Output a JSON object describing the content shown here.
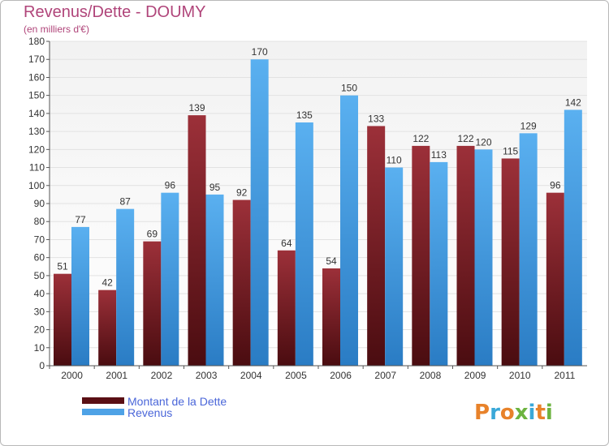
{
  "chart_data": {
    "type": "bar",
    "title": "Revenus/Dette - DOUMY",
    "subtitle": "(en milliers d'€)",
    "categories": [
      "2000",
      "2001",
      "2002",
      "2003",
      "2004",
      "2005",
      "2006",
      "2007",
      "2008",
      "2009",
      "2010",
      "2011"
    ],
    "series": [
      {
        "name": "Montant de la Dette",
        "values": [
          51,
          42,
          69,
          139,
          92,
          64,
          54,
          133,
          122,
          122,
          115,
          96
        ],
        "color": "#7b2228"
      },
      {
        "name": "Revenus",
        "values": [
          77,
          87,
          96,
          95,
          170,
          135,
          150,
          110,
          113,
          120,
          129,
          142
        ],
        "color": "#4ea2e6"
      }
    ],
    "ylim": [
      0,
      180
    ],
    "yticks": [
      0,
      10,
      20,
      30,
      40,
      50,
      60,
      70,
      80,
      90,
      100,
      110,
      120,
      130,
      140,
      150,
      160,
      170,
      180
    ],
    "grid": true,
    "legend_position": "bottom-left"
  },
  "branding": {
    "logo_text": "Proxiti",
    "logo_colors": [
      "#e8822a",
      "#3aa8d8",
      "#e8822a",
      "#6cb33f",
      "#3aa8d8",
      "#e8822a",
      "#6cb33f"
    ]
  }
}
